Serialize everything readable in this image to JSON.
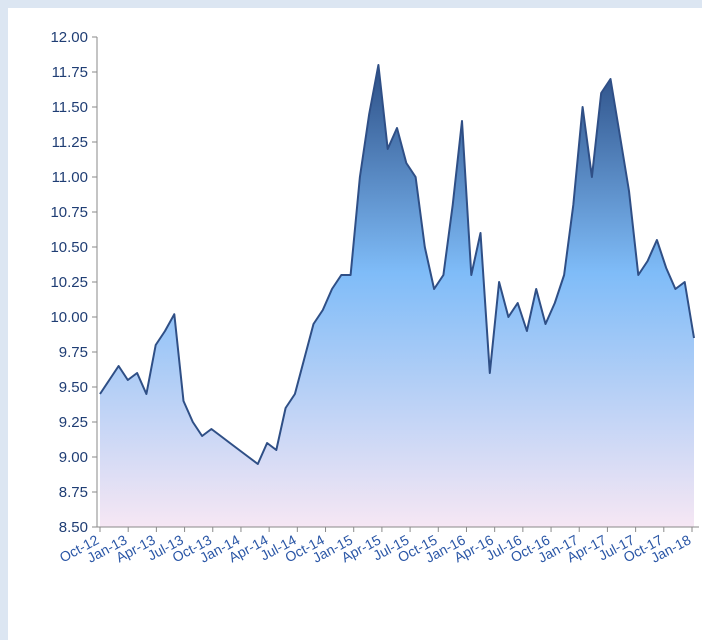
{
  "chart_data": {
    "type": "area",
    "title": "",
    "xlabel": "",
    "ylabel": "",
    "ylim": [
      8.5,
      12.0
    ],
    "yticks": [
      "12.00",
      "11.75",
      "11.50",
      "11.25",
      "11.00",
      "10.75",
      "10.50",
      "10.25",
      "10.00",
      "9.75",
      "9.50",
      "9.25",
      "9.00",
      "8.75",
      "8.50"
    ],
    "xticks": [
      "Oct-12",
      "Jan-13",
      "Apr-13",
      "Jul-13",
      "Oct-13",
      "Jan-14",
      "Apr-14",
      "Jul-14",
      "Oct-14",
      "Jan-15",
      "Apr-15",
      "Jul-15",
      "Oct-15",
      "Jan-16",
      "Apr-16",
      "Jul-16",
      "Oct-16",
      "Jan-17",
      "Apr-17",
      "Jul-17",
      "Oct-17",
      "Jan-18"
    ],
    "grid": false,
    "legend": "none",
    "colors": {
      "line": "#2f4f86",
      "fill_top": "#2c4f86",
      "fill_mid": "#7fbcf8",
      "fill_bottom": "#f6e7f4",
      "background": "#dce6f2"
    },
    "series": [
      {
        "x": [
          "Oct-12",
          "Nov-12",
          "Dec-12",
          "Jan-13",
          "Feb-13",
          "Mar-13",
          "Apr-13",
          "May-13",
          "Jun-13",
          "Jul-13",
          "Aug-13",
          "Sep-13",
          "Oct-13",
          "Nov-13",
          "Dec-13",
          "Jan-14",
          "Feb-14",
          "Mar-14",
          "Apr-14",
          "May-14",
          "Jun-14",
          "Jul-14",
          "Aug-14",
          "Sep-14",
          "Oct-14",
          "Nov-14",
          "Dec-14",
          "Jan-15",
          "Feb-15",
          "Mar-15",
          "Apr-15",
          "May-15",
          "Jun-15",
          "Jul-15",
          "Aug-15",
          "Sep-15",
          "Oct-15",
          "Nov-15",
          "Dec-15",
          "Jan-16",
          "Feb-16",
          "Mar-16",
          "Apr-16",
          "May-16",
          "Jun-16",
          "Jul-16",
          "Aug-16",
          "Sep-16",
          "Oct-16",
          "Nov-16",
          "Dec-16",
          "Jan-17",
          "Feb-17",
          "Mar-17",
          "Apr-17",
          "May-17",
          "Jun-17",
          "Jul-17",
          "Aug-17",
          "Sep-17",
          "Oct-17",
          "Nov-17",
          "Dec-17",
          "Jan-18",
          "Feb-18"
        ],
        "values": [
          9.45,
          9.55,
          9.65,
          9.55,
          9.6,
          9.45,
          9.8,
          9.9,
          10.02,
          9.4,
          9.25,
          9.15,
          9.2,
          9.15,
          9.1,
          9.05,
          9.0,
          8.95,
          9.1,
          9.05,
          9.35,
          9.45,
          9.7,
          9.95,
          10.05,
          10.2,
          10.3,
          10.3,
          11.0,
          11.45,
          11.8,
          11.2,
          11.35,
          11.1,
          11.0,
          10.5,
          10.2,
          10.3,
          10.8,
          11.4,
          10.3,
          10.6,
          9.6,
          10.25,
          10.0,
          10.1,
          9.9,
          10.2,
          9.95,
          10.1,
          10.3,
          10.8,
          11.5,
          11.0,
          11.6,
          11.7,
          11.3,
          10.9,
          10.3,
          10.4,
          10.55,
          10.35,
          10.2,
          10.25,
          9.85
        ]
      }
    ]
  }
}
